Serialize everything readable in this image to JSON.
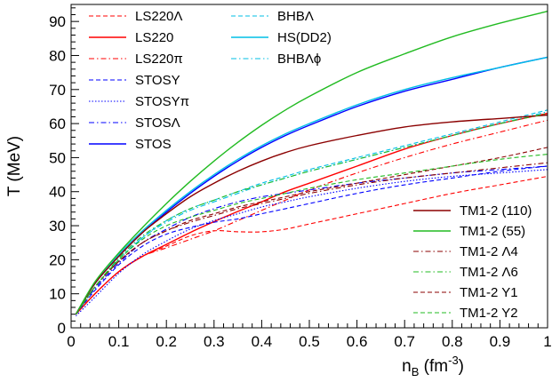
{
  "chart_data": {
    "type": "line",
    "xlabel": "n",
    "xlabel_sub": "B",
    "xlabel_unit_pre": " (fm",
    "xlabel_unit_sup": "-3",
    "xlabel_unit_post": ")",
    "ylabel": "T (MeV)",
    "xlim": [
      0,
      1
    ],
    "ylim": [
      0,
      95
    ],
    "x_ticks": [
      0,
      0.1,
      0.2,
      0.3,
      0.4,
      0.5,
      0.6,
      0.7,
      0.8,
      0.9,
      1
    ],
    "x_tick_labels": [
      "0",
      "0.1",
      "0.2",
      "0.3",
      "0.4",
      "0.5",
      "0.6",
      "0.7",
      "0.8",
      "0.9",
      "1"
    ],
    "y_ticks": [
      0,
      10,
      20,
      30,
      40,
      50,
      60,
      70,
      80,
      90
    ],
    "y_tick_labels": [
      "0",
      "10",
      "20",
      "30",
      "40",
      "50",
      "60",
      "70",
      "80",
      "90"
    ],
    "grid": false,
    "legend_left_placement": "top-left",
    "legend_right_placement": "bottom-right",
    "series": [
      {
        "name": "LS220Λ",
        "color": "#ff0000",
        "dash": "dashed",
        "legend_group": "left",
        "x": [
          0.01,
          0.05,
          0.1,
          0.15,
          0.2,
          0.25,
          0.3,
          0.35,
          0.4,
          0.45,
          0.5,
          0.6,
          0.7,
          0.8,
          0.9,
          1.0
        ],
        "y": [
          4,
          10,
          16.5,
          21,
          24,
          27,
          28.5,
          28.2,
          28.2,
          29,
          30.5,
          33.5,
          36.5,
          39.5,
          42,
          44.5
        ]
      },
      {
        "name": "LS220",
        "color": "#ff0000",
        "dash": "solid",
        "legend_group": "left",
        "x": [
          0.01,
          0.05,
          0.1,
          0.15,
          0.2,
          0.25,
          0.3,
          0.35,
          0.4,
          0.45,
          0.5,
          0.6,
          0.7,
          0.8,
          0.9,
          1.0
        ],
        "y": [
          4,
          10,
          16.5,
          21,
          24.5,
          28,
          31.2,
          34.2,
          37,
          40,
          42.5,
          47.5,
          52.5,
          56.5,
          60,
          63
        ]
      },
      {
        "name": "LS220π",
        "color": "#ff0000",
        "dash": "dashdot",
        "legend_group": "left",
        "x": [
          0.01,
          0.05,
          0.1,
          0.15,
          0.2,
          0.25,
          0.3,
          0.35,
          0.4,
          0.45,
          0.5,
          0.6,
          0.7,
          0.8,
          0.9,
          1.0
        ],
        "y": [
          4,
          10,
          16.5,
          21,
          23.5,
          26,
          28.5,
          31.5,
          34.5,
          37.5,
          40.5,
          45.5,
          50,
          54,
          57.5,
          61
        ]
      },
      {
        "name": "STOSY",
        "color": "#0000ff",
        "dash": "dashed",
        "legend_group": "left",
        "x": [
          0.01,
          0.05,
          0.1,
          0.15,
          0.2,
          0.25,
          0.3,
          0.35,
          0.4,
          0.45,
          0.5,
          0.6,
          0.7,
          0.8,
          0.9,
          1.0
        ],
        "y": [
          4,
          11,
          18.5,
          24,
          27.5,
          29.5,
          31,
          32,
          33.5,
          35,
          36.5,
          39.5,
          42,
          44,
          46,
          47.5
        ]
      },
      {
        "name": "STOSYπ",
        "color": "#0000ff",
        "dash": "dotted",
        "legend_group": "left",
        "x": [
          0.01,
          0.05,
          0.1,
          0.15,
          0.2,
          0.25,
          0.3,
          0.35,
          0.4,
          0.45,
          0.5,
          0.6,
          0.7,
          0.8,
          0.9,
          1.0
        ],
        "y": [
          3.5,
          9,
          16,
          21.5,
          25.5,
          29,
          31.5,
          33.5,
          35.5,
          37,
          38.5,
          41,
          43,
          44.5,
          45.5,
          46.5
        ]
      },
      {
        "name": "STOSΛ",
        "color": "#0000ff",
        "dash": "dashdot",
        "legend_group": "left",
        "x": [
          0.01,
          0.05,
          0.1,
          0.15,
          0.2,
          0.25,
          0.3,
          0.35,
          0.4,
          0.45,
          0.5,
          0.6,
          0.7,
          0.8,
          0.9,
          1.0
        ],
        "y": [
          4,
          11.5,
          19,
          25,
          29,
          32.5,
          35,
          37,
          38.5,
          39.5,
          40.5,
          42.5,
          44,
          45.5,
          46.5,
          47.5
        ]
      },
      {
        "name": "STOS",
        "color": "#0000ff",
        "dash": "solid",
        "legend_group": "left",
        "x": [
          0.01,
          0.05,
          0.1,
          0.15,
          0.2,
          0.25,
          0.3,
          0.35,
          0.4,
          0.45,
          0.5,
          0.6,
          0.7,
          0.8,
          0.9,
          1.0
        ],
        "y": [
          4,
          13,
          21,
          28,
          34,
          39.5,
          44.5,
          49,
          53,
          56.5,
          59.5,
          65,
          69.5,
          73,
          76.5,
          79.5
        ]
      },
      {
        "name": "BHBΛ",
        "color": "#00bfe6",
        "dash": "dashed",
        "legend_group": "left",
        "x": [
          0.01,
          0.05,
          0.1,
          0.15,
          0.2,
          0.25,
          0.3,
          0.35,
          0.4,
          0.45,
          0.5,
          0.6,
          0.7,
          0.8,
          0.9,
          1.0
        ],
        "y": [
          4,
          12,
          20,
          26.5,
          31.5,
          35,
          37.5,
          40,
          42.5,
          44.5,
          46.5,
          50,
          53.5,
          57,
          60.5,
          64
        ]
      },
      {
        "name": "HS(DD2)",
        "color": "#00bfe6",
        "dash": "solid",
        "legend_group": "left",
        "x": [
          0.01,
          0.05,
          0.1,
          0.15,
          0.2,
          0.25,
          0.3,
          0.35,
          0.4,
          0.45,
          0.5,
          0.6,
          0.7,
          0.8,
          0.9,
          1.0
        ],
        "y": [
          4,
          13,
          21.5,
          28.5,
          34.5,
          40,
          45,
          49.5,
          53.5,
          57,
          60,
          65.5,
          70,
          73.5,
          76.5,
          79.5
        ]
      },
      {
        "name": "BHBΛϕ",
        "color": "#00bfe6",
        "dash": "dashdot",
        "legend_group": "left",
        "x": [
          0.01,
          0.05,
          0.1,
          0.15,
          0.2,
          0.25,
          0.3,
          0.35,
          0.4,
          0.45,
          0.5,
          0.6,
          0.7,
          0.8,
          0.9,
          1.0
        ],
        "y": [
          4,
          12,
          20,
          26.5,
          31,
          34.5,
          37,
          39.5,
          42,
          44,
          46,
          49.5,
          53,
          56.5,
          60,
          63.5
        ]
      },
      {
        "name": "TM1-2 (110)",
        "color": "#8b0000",
        "dash": "solid",
        "legend_group": "right",
        "x": [
          0.01,
          0.05,
          0.1,
          0.15,
          0.2,
          0.25,
          0.3,
          0.35,
          0.4,
          0.45,
          0.5,
          0.6,
          0.7,
          0.8,
          0.9,
          1.0
        ],
        "y": [
          4,
          13,
          21,
          28,
          33.5,
          38.5,
          42.5,
          46,
          49,
          51.5,
          53.5,
          56.5,
          59,
          60.5,
          61.5,
          62.5
        ]
      },
      {
        "name": "TM1-2 (55)",
        "color": "#22bb22",
        "dash": "solid",
        "legend_group": "right",
        "x": [
          0.01,
          0.05,
          0.1,
          0.15,
          0.2,
          0.25,
          0.3,
          0.35,
          0.4,
          0.45,
          0.5,
          0.6,
          0.7,
          0.8,
          0.9,
          1.0
        ],
        "y": [
          4,
          13.5,
          22,
          29.5,
          36.5,
          43,
          49,
          54.5,
          59.5,
          64,
          68,
          75,
          80.5,
          85.5,
          89.5,
          93
        ]
      },
      {
        "name": "TM1-2 Λ4",
        "color": "#8b0000",
        "dash": "dashdot",
        "legend_group": "right",
        "x": [
          0.01,
          0.05,
          0.1,
          0.15,
          0.2,
          0.25,
          0.3,
          0.35,
          0.4,
          0.45,
          0.5,
          0.6,
          0.7,
          0.8,
          0.9,
          1.0
        ],
        "y": [
          4,
          12,
          19.5,
          25,
          28.5,
          31,
          33,
          35,
          36.5,
          38,
          39.5,
          42,
          44,
          45.5,
          47,
          48.5
        ]
      },
      {
        "name": "TM1-2 Λ6",
        "color": "#22bb22",
        "dash": "dashdot",
        "legend_group": "right",
        "x": [
          0.01,
          0.05,
          0.1,
          0.15,
          0.2,
          0.25,
          0.3,
          0.35,
          0.4,
          0.45,
          0.5,
          0.6,
          0.7,
          0.8,
          0.9,
          1.0
        ],
        "y": [
          4,
          12,
          20.5,
          27,
          31.5,
          35,
          37.5,
          40,
          42,
          44,
          46,
          49.5,
          53,
          56.5,
          60,
          63
        ]
      },
      {
        "name": "TM1-2 Y1",
        "color": "#8b0000",
        "dash": "dashed",
        "legend_group": "right",
        "x": [
          0.01,
          0.05,
          0.1,
          0.15,
          0.2,
          0.25,
          0.3,
          0.35,
          0.4,
          0.45,
          0.5,
          0.6,
          0.7,
          0.8,
          0.9,
          1.0
        ],
        "y": [
          4,
          12,
          19.5,
          25,
          28.5,
          31.5,
          33.5,
          35.5,
          37,
          38.5,
          40,
          42.5,
          45,
          47.5,
          50,
          53
        ]
      },
      {
        "name": "TM1-2 Y2",
        "color": "#22bb22",
        "dash": "dashed",
        "legend_group": "right",
        "x": [
          0.01,
          0.05,
          0.1,
          0.15,
          0.2,
          0.25,
          0.3,
          0.35,
          0.4,
          0.45,
          0.5,
          0.6,
          0.7,
          0.8,
          0.9,
          1.0
        ],
        "y": [
          4,
          12,
          20,
          26,
          30,
          32.5,
          34.5,
          36.5,
          38,
          39.5,
          41,
          43.5,
          45.5,
          47.5,
          49.5,
          51
        ]
      }
    ]
  }
}
